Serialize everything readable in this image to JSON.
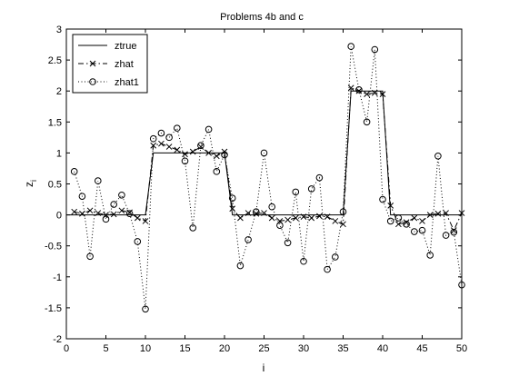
{
  "chart_data": {
    "type": "line",
    "title": "Problems 4b and c",
    "xlabel": "i",
    "ylabel": "z",
    "ylabel_sub": "i",
    "xlim": [
      0,
      50
    ],
    "ylim": [
      -2,
      3
    ],
    "xticks": [
      0,
      5,
      10,
      15,
      20,
      25,
      30,
      35,
      40,
      45,
      50
    ],
    "yticks": [
      -2,
      -1.5,
      -1,
      -0.5,
      0,
      0.5,
      1,
      1.5,
      2,
      2.5,
      3
    ],
    "xtick_labels": [
      "0",
      "5",
      "10",
      "15",
      "20",
      "25",
      "30",
      "35",
      "40",
      "45",
      "50"
    ],
    "ytick_labels": [
      "-2",
      "-1.5",
      "-1",
      "-0.5",
      "0",
      "0.5",
      "1",
      "1.5",
      "2",
      "2.5",
      "3"
    ],
    "grid": false,
    "legend_position": "top-left",
    "series": [
      {
        "name": "ztrue",
        "style": "solid",
        "marker": "none",
        "color": "#000000",
        "x": [
          0,
          10,
          11,
          20,
          21,
          35,
          36,
          40,
          41,
          50
        ],
        "y": [
          0,
          0,
          1,
          1,
          0,
          0,
          2,
          2,
          0,
          0
        ]
      },
      {
        "name": "zhat",
        "style": "dashdot",
        "marker": "x",
        "color": "#000000",
        "x": [
          1,
          2,
          3,
          4,
          5,
          6,
          7,
          8,
          9,
          10,
          11,
          12,
          13,
          14,
          15,
          16,
          17,
          18,
          19,
          20,
          21,
          22,
          23,
          24,
          25,
          26,
          27,
          28,
          29,
          30,
          31,
          32,
          33,
          34,
          35,
          36,
          37,
          38,
          39,
          40,
          41,
          42,
          43,
          44,
          45,
          46,
          47,
          48,
          49,
          50
        ],
        "y": [
          0.05,
          0.02,
          0.07,
          0.03,
          0.0,
          0.01,
          0.07,
          0.04,
          -0.05,
          -0.1,
          1.12,
          1.15,
          1.1,
          1.05,
          0.98,
          1.02,
          1.1,
          1.0,
          0.95,
          1.02,
          0.1,
          -0.05,
          0.03,
          0.02,
          0.03,
          -0.05,
          -0.1,
          -0.08,
          -0.05,
          -0.03,
          -0.05,
          -0.02,
          -0.03,
          -0.1,
          -0.15,
          2.05,
          2.0,
          1.95,
          1.97,
          1.95,
          0.15,
          -0.15,
          -0.12,
          -0.05,
          -0.1,
          0.0,
          0.02,
          0.03,
          -0.25,
          0.03
        ]
      },
      {
        "name": "zhat1",
        "style": "dotted",
        "marker": "o",
        "color": "#000000",
        "x": [
          1,
          2,
          3,
          4,
          5,
          6,
          7,
          8,
          9,
          10,
          11,
          12,
          13,
          14,
          15,
          16,
          17,
          18,
          19,
          20,
          21,
          22,
          23,
          24,
          25,
          26,
          27,
          28,
          29,
          30,
          31,
          32,
          33,
          34,
          35,
          36,
          37,
          38,
          39,
          40,
          41,
          42,
          43,
          44,
          45,
          46,
          47,
          48,
          49,
          50
        ],
        "y": [
          0.7,
          0.3,
          -0.67,
          0.55,
          -0.07,
          0.17,
          0.32,
          0.02,
          -0.43,
          -1.52,
          1.23,
          1.32,
          1.25,
          1.4,
          0.87,
          -0.21,
          1.12,
          1.38,
          0.7,
          0.97,
          0.27,
          -0.82,
          -0.4,
          0.05,
          1.0,
          0.13,
          -0.17,
          -0.45,
          0.37,
          -0.75,
          0.42,
          0.6,
          -0.88,
          -0.68,
          0.05,
          2.72,
          2.02,
          1.5,
          2.67,
          0.25,
          -0.1,
          -0.05,
          -0.15,
          -0.27,
          -0.25,
          -0.65,
          0.95,
          -0.33,
          -0.28,
          -1.13
        ]
      }
    ]
  }
}
